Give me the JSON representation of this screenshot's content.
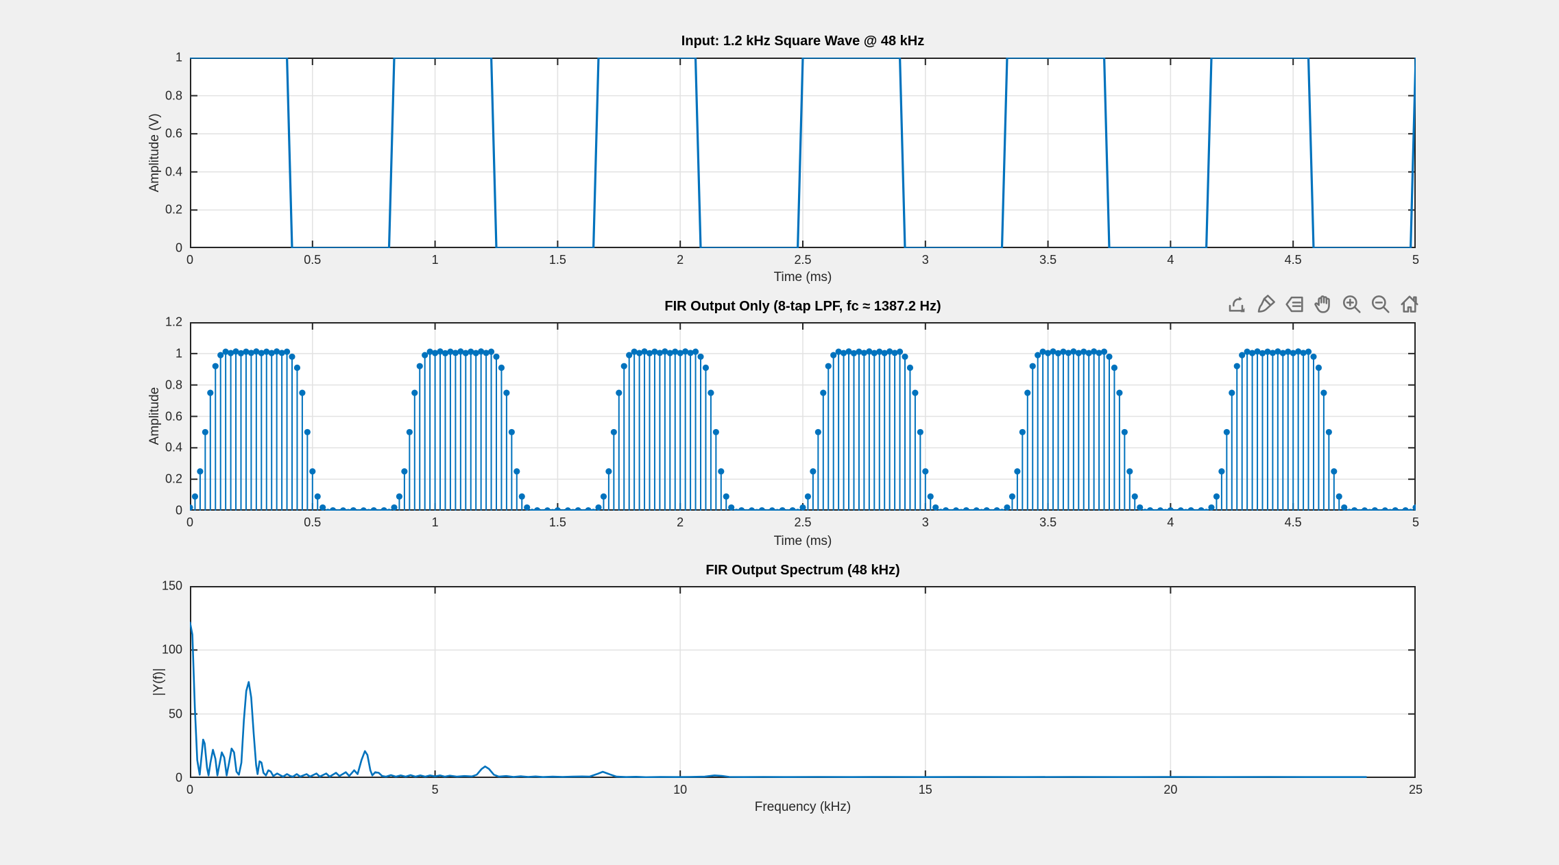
{
  "figure": {
    "background_color": "#f0f0f0",
    "plot_background_color": "#ffffff",
    "line_color": "#0072bd",
    "axis_color": "#242424",
    "grid_color": "#e2e2e2",
    "title_color": "#000000"
  },
  "toolbar": {
    "icons": [
      {
        "name": "export",
        "label": "Export"
      },
      {
        "name": "brush",
        "label": "Brush/Select Data"
      },
      {
        "name": "data-tips",
        "label": "Data Tips"
      },
      {
        "name": "pan",
        "label": "Pan"
      },
      {
        "name": "zoom-in",
        "label": "Zoom In"
      },
      {
        "name": "zoom-out",
        "label": "Zoom Out"
      },
      {
        "name": "restore-view",
        "label": "Restore View"
      }
    ]
  },
  "chart_data": [
    {
      "id": "input-square-wave",
      "type": "line",
      "title": "Input: 1.2 kHz Square Wave @ 48 kHz",
      "xlabel": "Time (ms)",
      "ylabel": "Amplitude (V)",
      "xlim": [
        0,
        5
      ],
      "ylim": [
        0,
        1
      ],
      "xticks": [
        0,
        0.5,
        1,
        1.5,
        2,
        2.5,
        3,
        3.5,
        4,
        4.5,
        5
      ],
      "yticks": [
        0,
        0.2,
        0.4,
        0.6,
        0.8,
        1
      ],
      "grid": true,
      "signal": {
        "waveform": "square",
        "frequency_khz": 1.2,
        "sample_rate_khz": 48,
        "duration_ms": 5,
        "high_level": 1,
        "low_level": 0,
        "sample_period_ms": 0.0208333,
        "fall_times_ms": [
          0.41667,
          1.25,
          2.08333,
          2.91667,
          3.75,
          4.58333
        ],
        "rise_times_ms": [
          0.83333,
          1.66667,
          2.5,
          3.33333,
          4.16667,
          5.0
        ],
        "start_level": 1
      }
    },
    {
      "id": "fir-output-stem",
      "type": "stem",
      "title": "FIR Output Only (8-tap LPF, fc ≈ 1387.2 Hz)",
      "xlabel": "Time (ms)",
      "ylabel": "Amplitude",
      "xlim": [
        0,
        5
      ],
      "ylim": [
        0,
        1.2
      ],
      "xticks": [
        0,
        0.5,
        1,
        1.5,
        2,
        2.5,
        3,
        3.5,
        4,
        4.5,
        5
      ],
      "yticks": [
        0,
        0.2,
        0.4,
        0.6,
        0.8,
        1,
        1.2
      ],
      "grid": true,
      "stem": {
        "sample_rate_khz": 48,
        "sample_period_ms": 0.0208333,
        "period_samples": 40,
        "repeats": 6,
        "one_period": [
          0.02,
          0.09,
          0.25,
          0.5,
          0.75,
          0.92,
          0.99,
          1.012,
          1.003,
          1.013,
          1.002,
          1.012,
          1.004,
          1.013,
          1.003,
          1.012,
          1.003,
          1.013,
          1.004,
          1.012,
          0.98,
          0.91,
          0.75,
          0.5,
          0.25,
          0.09,
          0.02,
          -0.008,
          0.002,
          -0.01,
          0.001,
          -0.009,
          0.002,
          -0.01,
          0.001,
          -0.009,
          0.002,
          -0.01,
          0.002,
          -0.008
        ],
        "tail": [
          0.02
        ]
      }
    },
    {
      "id": "fir-output-spectrum",
      "type": "line",
      "title": "FIR Output Spectrum (48 kHz)",
      "xlabel": "Frequency (kHz)",
      "ylabel": "|Y(f)|",
      "xlim": [
        0,
        25
      ],
      "ylim": [
        0,
        150
      ],
      "xticks": [
        0,
        5,
        10,
        15,
        20,
        25
      ],
      "yticks": [
        0,
        50,
        100,
        150
      ],
      "grid": true,
      "points": [
        [
          0,
          122
        ],
        [
          0.05,
          112
        ],
        [
          0.1,
          55
        ],
        [
          0.15,
          14
        ],
        [
          0.2,
          2.5
        ],
        [
          0.25,
          22
        ],
        [
          0.27,
          30
        ],
        [
          0.3,
          27
        ],
        [
          0.35,
          8
        ],
        [
          0.38,
          2
        ],
        [
          0.42,
          12
        ],
        [
          0.47,
          22
        ],
        [
          0.52,
          15
        ],
        [
          0.56,
          2
        ],
        [
          0.6,
          10
        ],
        [
          0.65,
          20
        ],
        [
          0.7,
          16
        ],
        [
          0.75,
          2
        ],
        [
          0.8,
          12
        ],
        [
          0.85,
          23
        ],
        [
          0.9,
          20
        ],
        [
          0.95,
          5
        ],
        [
          1.0,
          2.5
        ],
        [
          1.05,
          12
        ],
        [
          1.1,
          45
        ],
        [
          1.15,
          68
        ],
        [
          1.2,
          75
        ],
        [
          1.25,
          63
        ],
        [
          1.3,
          35
        ],
        [
          1.35,
          10
        ],
        [
          1.38,
          3
        ],
        [
          1.42,
          13
        ],
        [
          1.46,
          12
        ],
        [
          1.5,
          4
        ],
        [
          1.55,
          2
        ],
        [
          1.6,
          6
        ],
        [
          1.65,
          5
        ],
        [
          1.7,
          1.5
        ],
        [
          1.78,
          3.5
        ],
        [
          1.85,
          2
        ],
        [
          1.9,
          1
        ],
        [
          1.98,
          3
        ],
        [
          2.05,
          1.5
        ],
        [
          2.1,
          1
        ],
        [
          2.18,
          3
        ],
        [
          2.25,
          1
        ],
        [
          2.38,
          3
        ],
        [
          2.45,
          1
        ],
        [
          2.58,
          3.5
        ],
        [
          2.65,
          1
        ],
        [
          2.78,
          3.5
        ],
        [
          2.85,
          1
        ],
        [
          2.98,
          4
        ],
        [
          3.05,
          1.5
        ],
        [
          3.18,
          4.5
        ],
        [
          3.25,
          1.5
        ],
        [
          3.35,
          6
        ],
        [
          3.42,
          3
        ],
        [
          3.5,
          14
        ],
        [
          3.57,
          21
        ],
        [
          3.62,
          18
        ],
        [
          3.68,
          6
        ],
        [
          3.72,
          2
        ],
        [
          3.78,
          4.5
        ],
        [
          3.85,
          4
        ],
        [
          3.92,
          1.5
        ],
        [
          4.0,
          1
        ],
        [
          4.1,
          2.2
        ],
        [
          4.2,
          1
        ],
        [
          4.3,
          2
        ],
        [
          4.4,
          1
        ],
        [
          4.5,
          2.2
        ],
        [
          4.6,
          1
        ],
        [
          4.7,
          2
        ],
        [
          4.8,
          1
        ],
        [
          4.9,
          2
        ],
        [
          5.0,
          1.2
        ],
        [
          5.1,
          2
        ],
        [
          5.2,
          1
        ],
        [
          5.3,
          1.8
        ],
        [
          5.45,
          1
        ],
        [
          5.6,
          1.5
        ],
        [
          5.75,
          1.2
        ],
        [
          5.85,
          2.5
        ],
        [
          5.95,
          7
        ],
        [
          6.02,
          9
        ],
        [
          6.1,
          7
        ],
        [
          6.2,
          2.5
        ],
        [
          6.3,
          1
        ],
        [
          6.45,
          1.5
        ],
        [
          6.6,
          0.8
        ],
        [
          6.75,
          1.3
        ],
        [
          6.9,
          0.8
        ],
        [
          7.05,
          1.2
        ],
        [
          7.2,
          0.7
        ],
        [
          7.4,
          1
        ],
        [
          7.6,
          0.8
        ],
        [
          7.8,
          1
        ],
        [
          8.0,
          1.2
        ],
        [
          8.15,
          1
        ],
        [
          8.3,
          3
        ],
        [
          8.42,
          4.8
        ],
        [
          8.55,
          3
        ],
        [
          8.7,
          1
        ],
        [
          8.9,
          0.7
        ],
        [
          9.1,
          0.9
        ],
        [
          9.3,
          0.6
        ],
        [
          9.6,
          0.8
        ],
        [
          9.9,
          0.7
        ],
        [
          10.2,
          0.8
        ],
        [
          10.5,
          1
        ],
        [
          10.7,
          2
        ],
        [
          10.85,
          1.6
        ],
        [
          11.0,
          0.8
        ],
        [
          11.3,
          0.7
        ],
        [
          11.7,
          0.8
        ],
        [
          12.2,
          0.7
        ],
        [
          12.8,
          0.8
        ],
        [
          13.5,
          0.7
        ],
        [
          14.2,
          0.8
        ],
        [
          15.0,
          0.7
        ],
        [
          16.0,
          0.8
        ],
        [
          17.0,
          0.7
        ],
        [
          18.0,
          0.8
        ],
        [
          19.0,
          0.7
        ],
        [
          20.0,
          0.8
        ],
        [
          21.0,
          0.7
        ],
        [
          22.0,
          0.8
        ],
        [
          23.0,
          0.7
        ],
        [
          24.0,
          0.7
        ]
      ]
    }
  ]
}
